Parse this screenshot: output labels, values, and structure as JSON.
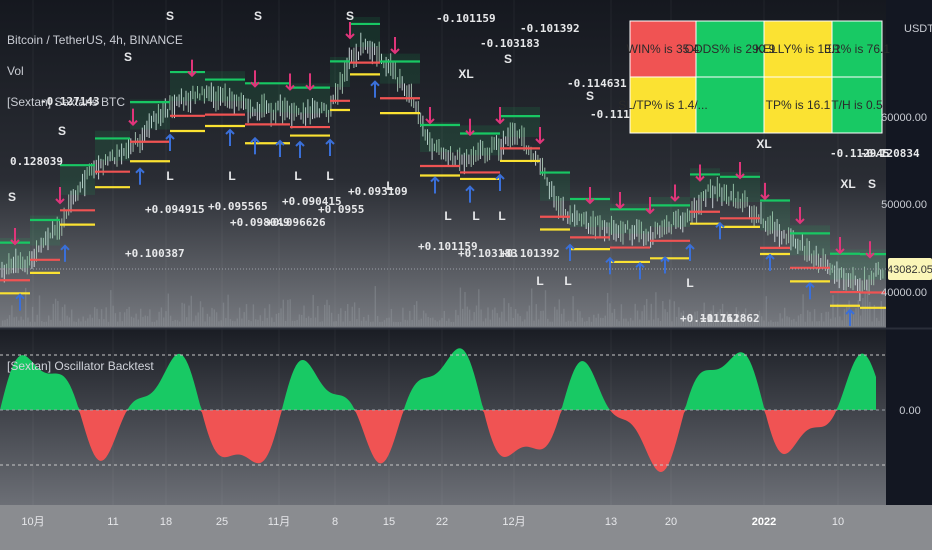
{
  "header": {
    "symbol": "Bitcoin / TetherUS, 4h, BINANCE",
    "volume_label": "Vol",
    "study_label": "[Sextan] Sextans BTC",
    "oscillator_label": "[Sextan] Oscillator Backtest"
  },
  "price_axis": {
    "currency": "USDT",
    "ticks": [
      "60000.00",
      "50000.00",
      "40000.00"
    ],
    "last_price": "43082.05"
  },
  "oscillator_axis": {
    "ticks": [
      "0.00"
    ]
  },
  "time_axis": {
    "labels": [
      "10月",
      "11",
      "18",
      "25",
      "11月",
      "8",
      "15",
      "22",
      "12月",
      "13",
      "20",
      "2022",
      "10"
    ]
  },
  "stats_table": {
    "rows": [
      [
        "WIN% is 35.4",
        "ODDS% is 290.9",
        "KELLY% is 13.1",
        "ER% is 76.1"
      ],
      [
        "SL/TP% is 1.4/...",
        "",
        "TP% is 16.1",
        "T/H is 0.5"
      ]
    ],
    "colors": {
      "red": "#f05353",
      "green": "#18c964",
      "yellow": "#fbe232"
    }
  },
  "trade_labels": [
    {
      "text": "0.128039"
    },
    {
      "text": "-0.127143"
    },
    {
      "text": "+0.094915"
    },
    {
      "text": "+0.100387"
    },
    {
      "text": "+0.095565"
    },
    {
      "text": "+0.098049"
    },
    {
      "text": "+0.096626"
    },
    {
      "text": "+0.090415"
    },
    {
      "text": "+0.0955"
    },
    {
      "text": "+0.093109"
    },
    {
      "text": "-0.101159"
    },
    {
      "text": "-0.103183"
    },
    {
      "text": "-0.101392"
    },
    {
      "text": "+0.101159"
    },
    {
      "text": "+0.103183"
    },
    {
      "text": "+0.101392"
    },
    {
      "text": "-0.114631"
    },
    {
      "text": "+0.111762"
    },
    {
      "text": "+0.111862"
    },
    {
      "text": "-0.112945"
    },
    {
      "text": "-0.120834"
    },
    {
      "text": "-0.111483"
    },
    {
      "text": "-0.114623"
    }
  ],
  "signal_letters": {
    "short": "S",
    "long": "L",
    "exit_long": "XL"
  },
  "colors": {
    "background": "#131722",
    "oscillator_positive": "#18c964",
    "oscillator_negative": "#f05353",
    "long_arrow": "#3a6fd8",
    "short_arrow": "#e0357a",
    "last_price_badge": "#fbf6b8"
  }
}
